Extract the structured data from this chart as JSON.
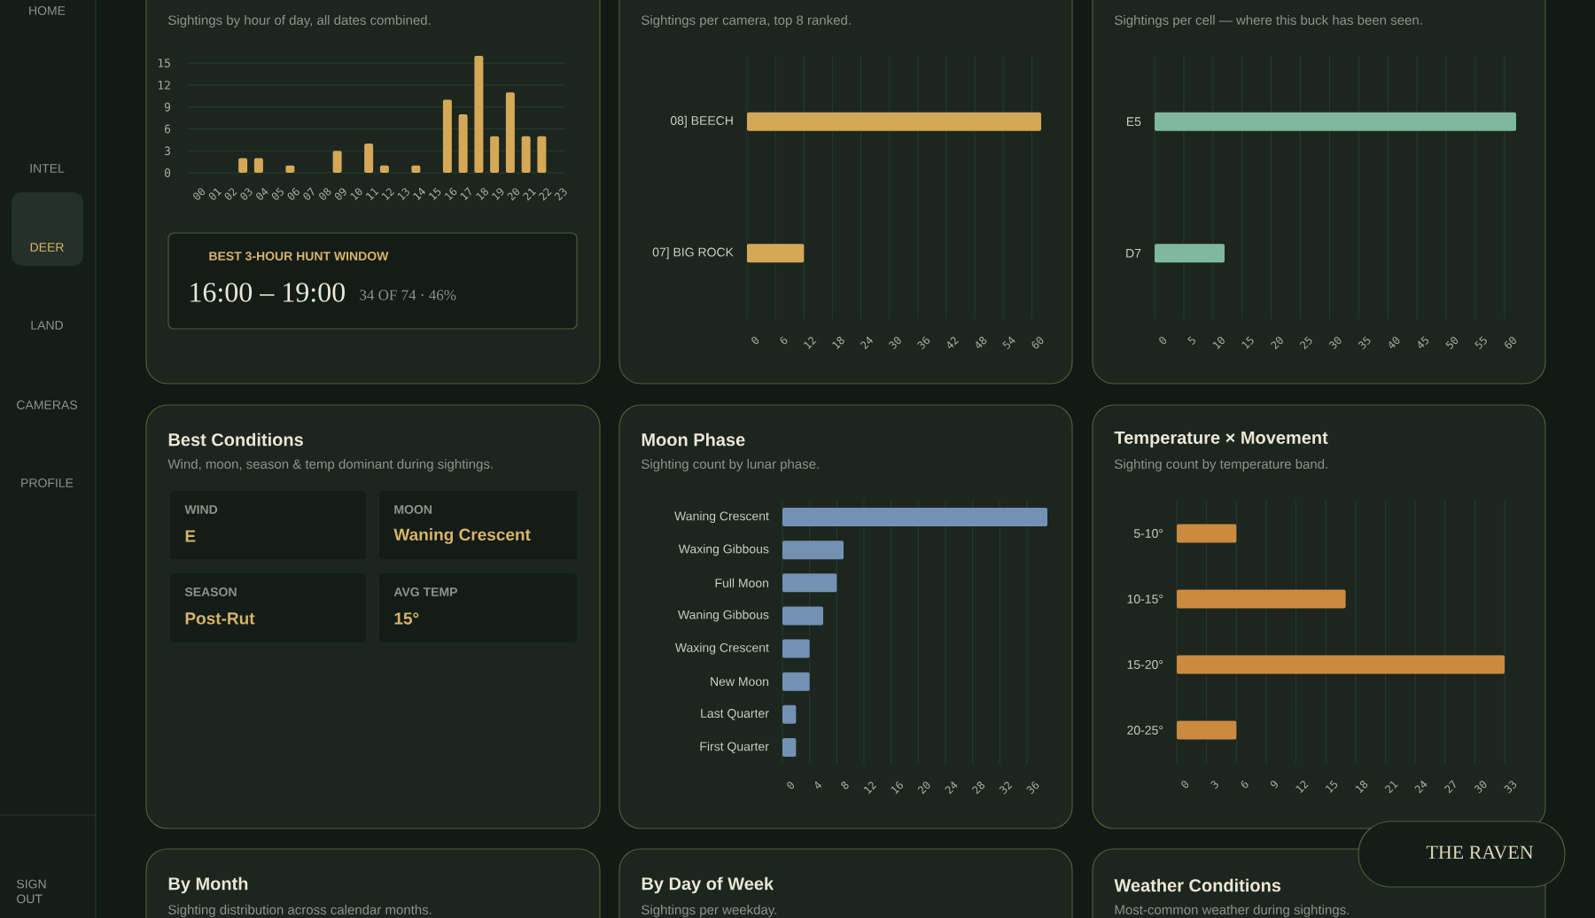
{
  "chart_data": [
    {
      "type": "other",
      "annotations": [
        "HOME",
        "INTEL",
        "DEER",
        "LAND",
        "CAMERAS",
        "PROFILE",
        "SIGN OUT"
      ]
    },
    {
      "type": "bar",
      "subtitle": "Sightings by hour of day, all dates combined.",
      "categories": [
        "00",
        "01",
        "02",
        "03",
        "04",
        "05",
        "06",
        "07",
        "08",
        "09",
        "10",
        "11",
        "12",
        "13",
        "14",
        "15",
        "16",
        "17",
        "18",
        "19",
        "20",
        "21",
        "22",
        "23"
      ],
      "values": [
        0,
        0,
        0,
        2,
        2,
        0,
        1,
        0,
        0,
        3,
        0,
        4,
        1,
        0,
        1,
        0,
        10,
        8,
        16,
        5,
        11,
        5,
        5,
        0
      ],
      "color": "#d4a857",
      "ylim": [
        0,
        16
      ],
      "yticks": [
        0,
        3,
        6,
        9,
        12,
        15
      ],
      "grid": "y",
      "annotations": [
        "BEST 3-HOUR HUNT WINDOW",
        "16:00 – 19:00",
        "34 OF 74 · 46%"
      ]
    },
    {
      "type": "bar",
      "orientation": "horizontal",
      "subtitle": "Sightings per camera, top 8 ranked.",
      "categories": [
        "08] BEECH",
        "07] BIG ROCK"
      ],
      "values": [
        62,
        12
      ],
      "color": "#d4a857",
      "xlim": [
        0,
        62
      ],
      "xticks": [
        0,
        6,
        12,
        18,
        24,
        30,
        36,
        42,
        48,
        54,
        60
      ],
      "grid": "x"
    },
    {
      "type": "bar",
      "orientation": "horizontal",
      "subtitle": "Sightings per cell — where this buck has been seen.",
      "categories": [
        "E5",
        "D7"
      ],
      "values": [
        62,
        12
      ],
      "color": "#7fb89d",
      "xlim": [
        0,
        62
      ],
      "xticks": [
        0,
        5,
        10,
        15,
        20,
        25,
        30,
        35,
        40,
        45,
        50,
        55,
        60
      ],
      "grid": "x"
    },
    {
      "type": "other",
      "title": "Best Conditions",
      "subtitle": "Wind, moon, season & temp dominant during sightings.",
      "annotations": [
        "WIND",
        "E",
        "MOON",
        "Waning Crescent",
        "SEASON",
        "Post-Rut",
        "AVG TEMP",
        "15°"
      ]
    },
    {
      "type": "bar",
      "orientation": "horizontal",
      "title": "Moon Phase",
      "subtitle": "Sighting count by lunar phase.",
      "categories": [
        "Waning Crescent",
        "Waxing Gibbous",
        "Full Moon",
        "Waning Gibbous",
        "Waxing Crescent",
        "New Moon",
        "Last Quarter",
        "First Quarter"
      ],
      "values": [
        39,
        9,
        8,
        6,
        4,
        4,
        2,
        2
      ],
      "color": "#7391b3",
      "xlim": [
        0,
        39
      ],
      "xticks": [
        0,
        4,
        8,
        12,
        16,
        20,
        24,
        28,
        32,
        36
      ],
      "grid": "x"
    },
    {
      "type": "bar",
      "orientation": "horizontal",
      "title": "Temperature × Movement",
      "subtitle": "Sighting count by temperature band.",
      "categories": [
        "5-10°",
        "10-15°",
        "15-20°",
        "20-25°"
      ],
      "values": [
        6,
        17,
        33,
        6
      ],
      "color": "#cc8a40",
      "xlim": [
        0,
        33
      ],
      "xticks": [
        0,
        3,
        6,
        9,
        12,
        15,
        18,
        21,
        24,
        27,
        30,
        33
      ],
      "grid": "x"
    },
    {
      "type": "other",
      "title": "By Month",
      "subtitle": "Sighting distribution across calendar months."
    },
    {
      "type": "other",
      "title": "By Day of Week",
      "subtitle": "Sightings per weekday."
    },
    {
      "type": "other",
      "title": "Weather Conditions",
      "subtitle": "Most-common weather during sightings."
    },
    {
      "type": "other",
      "annotations": [
        "THE RAVEN"
      ]
    }
  ]
}
